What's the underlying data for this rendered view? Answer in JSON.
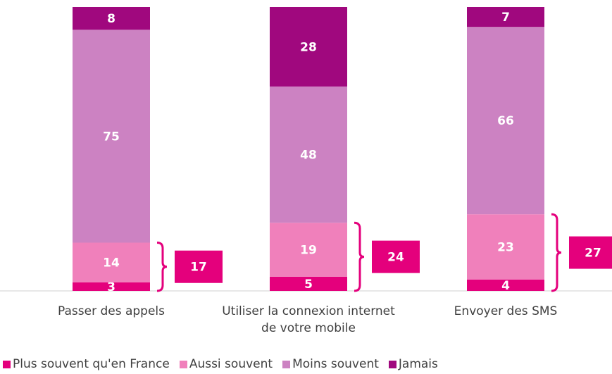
{
  "chart_data": {
    "type": "stacked_bar",
    "categories": [
      "Passer des appels",
      "Utiliser la connexion internet de votre mobile",
      "Envoyer des SMS"
    ],
    "series": [
      {
        "name": "Plus souvent qu'en France",
        "color": "#e4007c",
        "values": [
          3,
          5,
          4
        ]
      },
      {
        "name": "Aussi souvent",
        "color": "#f080bb",
        "values": [
          14,
          19,
          23
        ]
      },
      {
        "name": "Moins souvent",
        "color": "#cc82c2",
        "values": [
          75,
          48,
          66
        ]
      },
      {
        "name": "Jamais",
        "color": "#a0087e",
        "values": [
          8,
          28,
          7
        ]
      }
    ],
    "annotations": [
      17,
      24,
      27
    ],
    "annotation_color": "#e4007c",
    "ylim": [
      0,
      100
    ]
  }
}
